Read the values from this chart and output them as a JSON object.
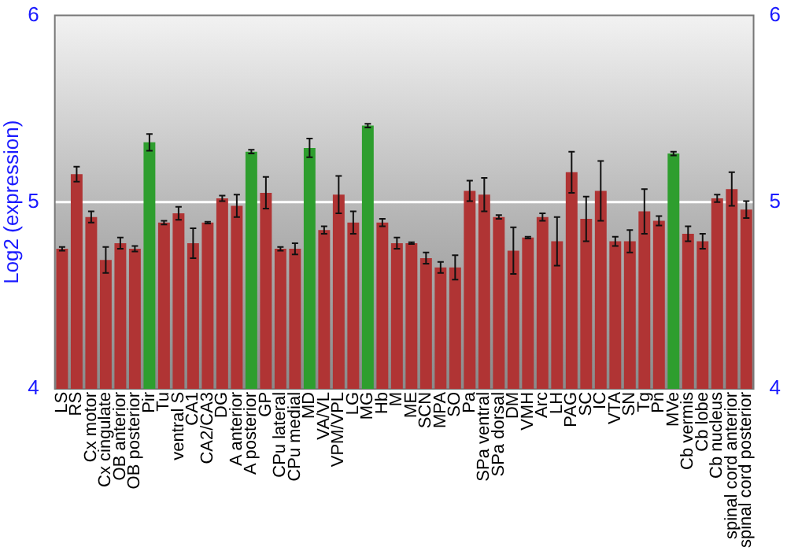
{
  "chart_data": {
    "type": "bar",
    "ylabel": "Log2 (expression)",
    "categories": [
      "LS",
      "RS",
      "Cx motor",
      "Cx cingulate",
      "OB anterior",
      "OB posterior",
      "Pir",
      "Tu",
      "ventral S",
      "CA1",
      "CA2/CA3",
      "DG",
      "A anterior",
      "A posterior",
      "GP",
      "CPu lateral",
      "CPu medial",
      "MD",
      "VA/VL",
      "VPM/VPL",
      "LG",
      "MG",
      "Hb",
      "M",
      "ME",
      "SCN",
      "MPA",
      "SO",
      "Pa",
      "SPa ventral",
      "SPa dorsal",
      "DM",
      "VMH",
      "Arc",
      "LH",
      "PAG",
      "SC",
      "IC",
      "VTA",
      "SN",
      "Tg",
      "Pn",
      "MVe",
      "Cb vermis",
      "Cb lobe",
      "Cb nucleus",
      "spinal cord anterior",
      "spinal cord posterior"
    ],
    "values": [
      4.75,
      5.15,
      4.92,
      4.69,
      4.78,
      4.75,
      5.32,
      4.89,
      4.94,
      4.78,
      4.89,
      5.02,
      4.98,
      5.27,
      5.05,
      4.75,
      4.75,
      5.29,
      4.85,
      5.04,
      4.89,
      5.41,
      4.89,
      4.78,
      4.78,
      4.7,
      4.65,
      4.65,
      5.06,
      5.04,
      4.92,
      4.74,
      4.81,
      4.92,
      4.79,
      5.16,
      4.91,
      5.06,
      4.79,
      4.79,
      4.95,
      4.9,
      5.26,
      4.83,
      4.79,
      5.02,
      5.07,
      4.96
    ],
    "errors": [
      0.01,
      0.04,
      0.03,
      0.07,
      0.03,
      0.015,
      0.045,
      0.01,
      0.035,
      0.08,
      0.005,
      0.015,
      0.06,
      0.01,
      0.085,
      0.01,
      0.03,
      0.05,
      0.02,
      0.1,
      0.06,
      0.01,
      0.02,
      0.03,
      0.005,
      0.03,
      0.03,
      0.065,
      0.055,
      0.09,
      0.01,
      0.125,
      0.005,
      0.02,
      0.13,
      0.11,
      0.12,
      0.16,
      0.025,
      0.06,
      0.12,
      0.025,
      0.01,
      0.04,
      0.04,
      0.02,
      0.09,
      0.045
    ],
    "colors": [
      "#b03434",
      "#b03434",
      "#b03434",
      "#b03434",
      "#b03434",
      "#b03434",
      "#2e9e2e",
      "#b03434",
      "#b03434",
      "#b03434",
      "#b03434",
      "#b03434",
      "#b03434",
      "#2e9e2e",
      "#b03434",
      "#b03434",
      "#b03434",
      "#2e9e2e",
      "#b03434",
      "#b03434",
      "#b03434",
      "#2e9e2e",
      "#b03434",
      "#b03434",
      "#b03434",
      "#b03434",
      "#b03434",
      "#b03434",
      "#b03434",
      "#b03434",
      "#b03434",
      "#b03434",
      "#b03434",
      "#b03434",
      "#b03434",
      "#b03434",
      "#b03434",
      "#b03434",
      "#b03434",
      "#b03434",
      "#b03434",
      "#b03434",
      "#2e9e2e",
      "#b03434",
      "#b03434",
      "#b03434",
      "#b03434",
      "#b03434"
    ],
    "ylim": [
      4,
      6
    ],
    "yticks": [
      4,
      5,
      6
    ],
    "y2lim": [
      4,
      6
    ],
    "y2ticks": [
      4,
      5,
      6
    ],
    "grid": "y",
    "legend": false
  }
}
